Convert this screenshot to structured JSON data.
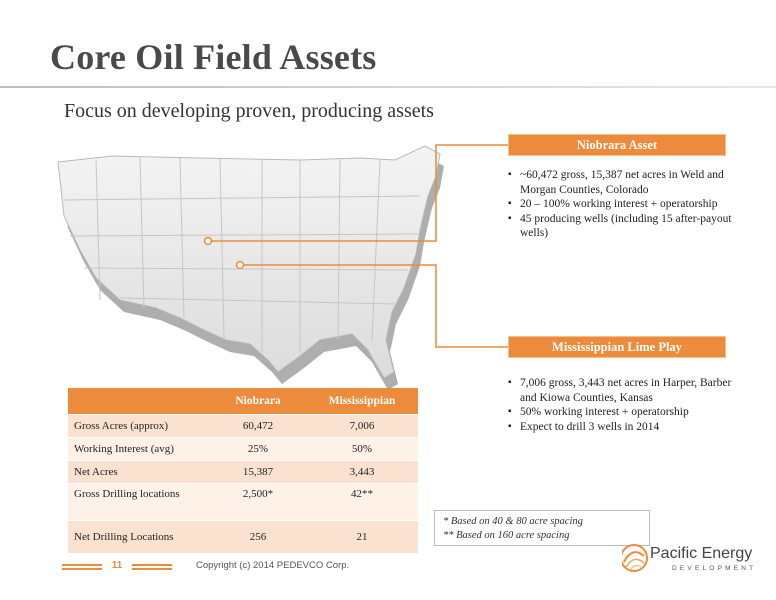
{
  "slide": {
    "title": "Core Oil Field Assets",
    "subtitle": "Focus on developing proven, producing assets"
  },
  "niobrara": {
    "header": "Niobrara Asset",
    "bullets": [
      "~60,472 gross, 15,387 net acres in Weld and Morgan Counties, Colorado",
      "20 – 100% working interest + operatorship",
      "45 producing wells (including 15 after-payout wells)"
    ]
  },
  "mississippian": {
    "header": "Mississippian Lime Play",
    "bullets": [
      "7,006 gross, 3,443 net acres in Harper, Barber and Kiowa Counties, Kansas",
      "50% working interest + operatorship",
      "Expect to drill 3 wells in 2014"
    ]
  },
  "table": {
    "columns": [
      "",
      "Niobrara",
      "Mississippian"
    ],
    "rows": [
      {
        "label": "Gross Acres (approx)",
        "niobrara": "60,472",
        "mississippian": "7,006"
      },
      {
        "label": "Working Interest (avg)",
        "niobrara": "25%",
        "mississippian": "50%"
      },
      {
        "label": "Net Acres",
        "niobrara": "15,387",
        "mississippian": "3,443"
      },
      {
        "label": "Gross Drilling locations",
        "niobrara": "2,500*",
        "mississippian": "42**"
      },
      {
        "label": "Net Drilling Locations",
        "niobrara": "256",
        "mississippian": "21"
      }
    ]
  },
  "notes": {
    "line1": "*  Based on 40 & 80 acre spacing",
    "line2": "** Based on 160 acre spacing"
  },
  "footer": {
    "page_number": "11",
    "copyright": "Copyright (c) 2014 PEDEVCO Corp."
  },
  "logo": {
    "name": "Pacific Energy",
    "tagline": "DEVELOPMENT"
  },
  "colors": {
    "accent": "#ec8b3c",
    "row_odd": "#fbe2d0",
    "row_even": "#fdf1e8"
  }
}
